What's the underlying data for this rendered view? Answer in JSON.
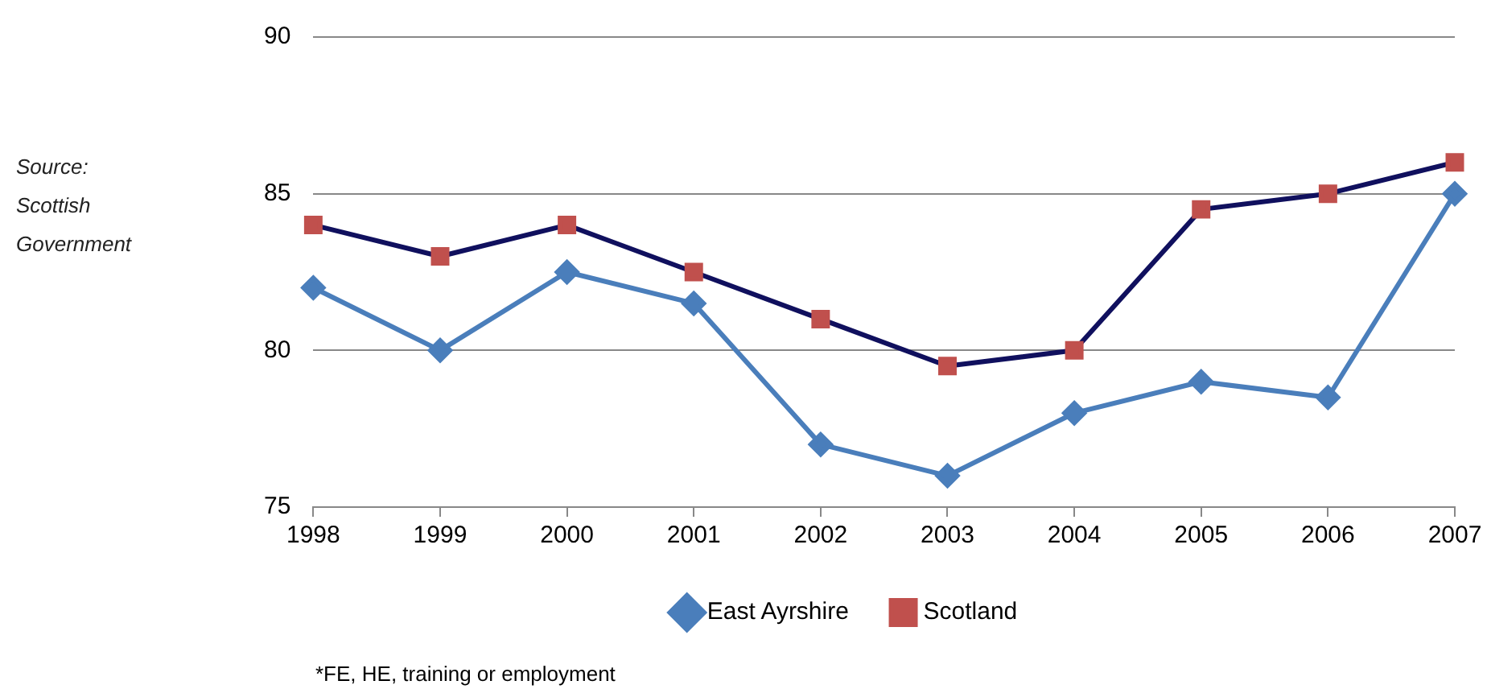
{
  "chart_data": {
    "type": "line",
    "categories": [
      "1998",
      "1999",
      "2000",
      "2001",
      "2002",
      "2003",
      "2004",
      "2005",
      "2006",
      "2007"
    ],
    "series": [
      {
        "name": "East Ayrshire",
        "color": "#4a7ebb",
        "marker": "diamond",
        "values": [
          82,
          80,
          82.5,
          81.5,
          77,
          76,
          78,
          79,
          78.5,
          85
        ]
      },
      {
        "name": "Scotland",
        "color": "#10105e",
        "marker": "square",
        "colors": [
          "#c0504d",
          "#c0504d",
          "#c0504d",
          "#c0504d",
          "#c0504d",
          "#c0504d",
          "#c0504d",
          "#c0504d",
          "#c0504d",
          "#c0504d"
        ],
        "values": [
          84,
          83,
          84,
          82.5,
          81,
          79.5,
          80,
          84.5,
          85,
          86
        ]
      }
    ],
    "ylim": [
      75,
      90
    ],
    "yticks": [
      75,
      80,
      85,
      90
    ],
    "grid": "y",
    "legend": "bottom",
    "line_style": "solid",
    "annotations": [
      "Source: Scottish Government",
      "*FE, HE, training or employment"
    ]
  }
}
